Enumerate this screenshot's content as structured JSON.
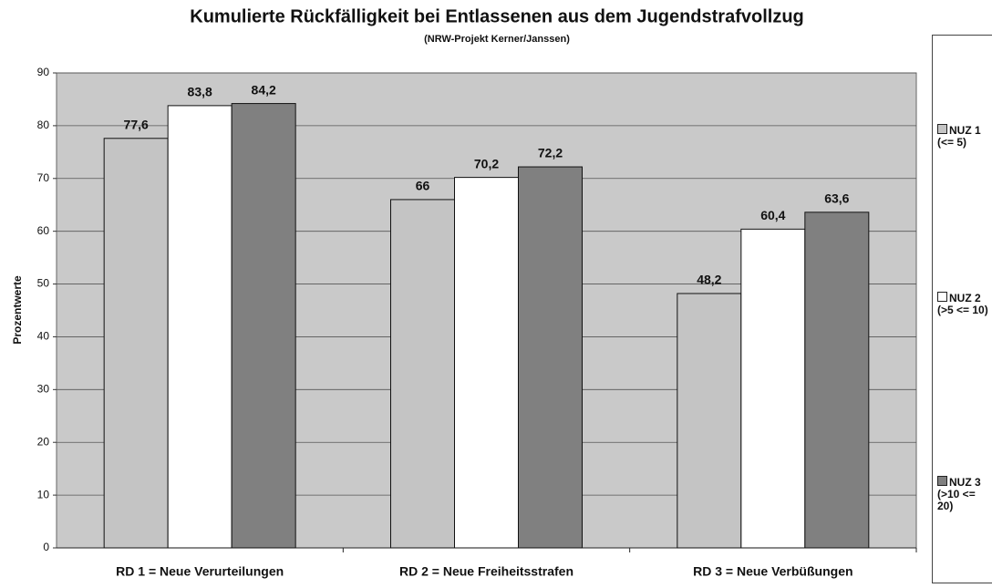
{
  "chart_data": {
    "type": "bar",
    "title": "Kumulierte Rückfälligkeit bei Entlassenen aus dem Jugendstrafvollzug",
    "subtitle": "(NRW-Projekt Kerner/Janssen)",
    "y_label": "Prozentwerte",
    "categories": [
      "RD 1 = Neue Verurteilungen",
      "RD 2 = Neue Freiheitsstrafen",
      "RD 3 = Neue Verbüßungen"
    ],
    "series": [
      {
        "name": "NUZ 1 (<= 5)",
        "color": "#c4c4c4",
        "values": [
          77.6,
          66,
          48.2
        ],
        "value_labels": [
          "77,6",
          "66",
          "48,2"
        ]
      },
      {
        "name": "NUZ 2 (>5 <= 10)",
        "color": "#ffffff",
        "values": [
          83.8,
          70.2,
          60.4
        ],
        "value_labels": [
          "83,8",
          "70,2",
          "60,4"
        ]
      },
      {
        "name": "NUZ 3 (>10 <= 20)",
        "color": "#808080",
        "values": [
          84.2,
          72.2,
          63.6
        ],
        "value_labels": [
          "84,2",
          "72,2",
          "63,6"
        ]
      }
    ],
    "ylim": [
      0,
      90
    ],
    "yticks": [
      0,
      10,
      20,
      30,
      40,
      50,
      60,
      70,
      80,
      90
    ],
    "grid": true,
    "legend": "right"
  }
}
